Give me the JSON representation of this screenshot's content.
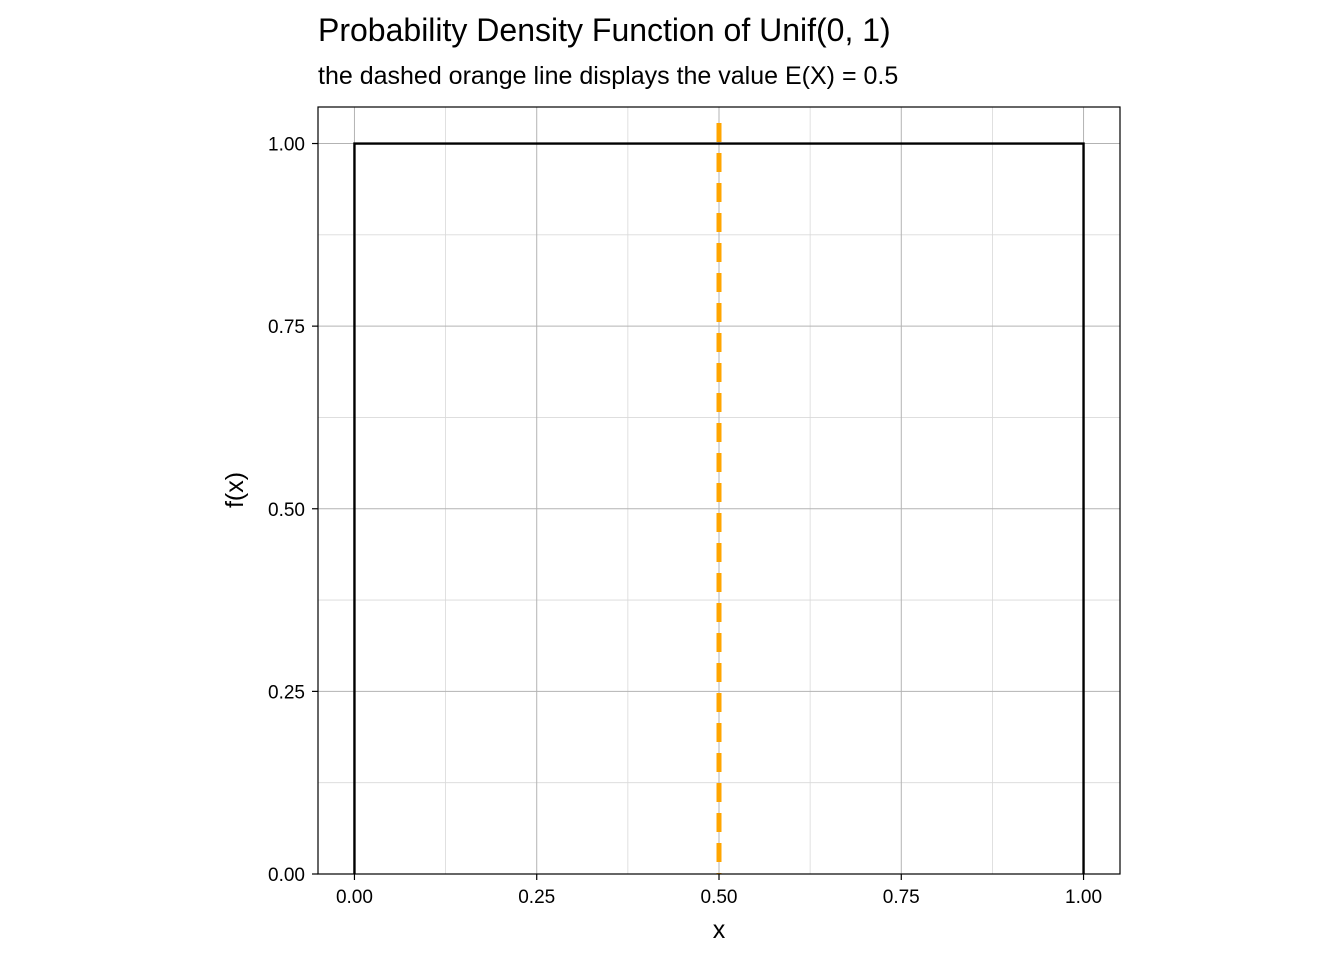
{
  "chart_data": {
    "type": "line",
    "title": "Probability Density Function of Unif(0, 1)",
    "subtitle": "the dashed orange line displays the value E(X) = 0.5",
    "xlabel": "x",
    "ylabel": "f(x)",
    "xlim": [
      -0.05,
      1.05
    ],
    "ylim": [
      0,
      1.05
    ],
    "x_ticks": [
      0,
      0.25,
      0.5,
      0.75,
      1
    ],
    "x_tick_labels": [
      "0.00",
      "0.25",
      "0.50",
      "0.75",
      "1.00"
    ],
    "y_ticks": [
      0,
      0.25,
      0.5,
      0.75,
      1
    ],
    "y_tick_labels": [
      "0.00",
      "0.25",
      "0.50",
      "0.75",
      "1.00"
    ],
    "x_minor_ticks": [
      0.125,
      0.375,
      0.625,
      0.875
    ],
    "y_minor_ticks": [
      0.125,
      0.375,
      0.625,
      0.875
    ],
    "grid": true,
    "series": [
      {
        "color": "#000000",
        "style": "solid",
        "x": [
          0,
          0,
          1,
          1
        ],
        "y": [
          0,
          1,
          1,
          0
        ]
      }
    ],
    "reference_lines": [
      {
        "orientation": "vertical",
        "x": 0.5,
        "color": "#FFA500",
        "style": "dashed"
      }
    ]
  }
}
